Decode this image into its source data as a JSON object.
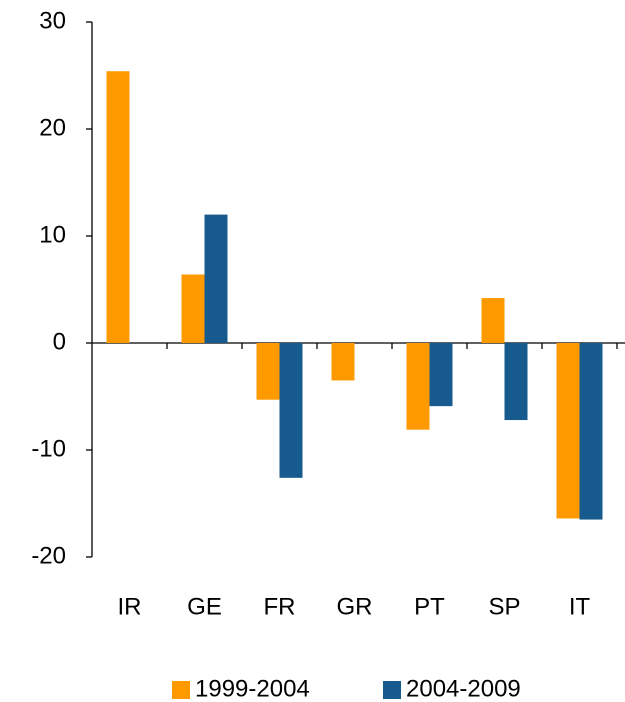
{
  "chart_data": {
    "type": "bar",
    "categories": [
      "IR",
      "GE",
      "FR",
      "GR",
      "PT",
      "SP",
      "IT"
    ],
    "series": [
      {
        "name": "1999-2004",
        "color": "#ff9900",
        "values": [
          25.4,
          6.4,
          -5.3,
          -3.5,
          -8.1,
          4.2,
          -16.4
        ]
      },
      {
        "name": "2004-2009",
        "color": "#165a8e",
        "values": [
          null,
          12.0,
          -12.6,
          null,
          -5.9,
          -7.2,
          -16.5
        ]
      }
    ],
    "ylim": [
      -20,
      30
    ],
    "yticks": [
      -20,
      -10,
      0,
      10,
      20,
      30
    ]
  }
}
